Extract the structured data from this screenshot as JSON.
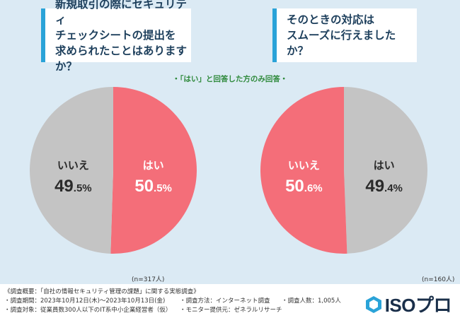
{
  "questions": {
    "left": "新規取引の際にセキュリティ\nチェックシートの提出を\n求められたことはありますか？",
    "right": "そのときの対応は\nスムーズに行えましたか？"
  },
  "note": "・「はい」と回答した方のみ回答・",
  "chart_data": [
    {
      "type": "pie",
      "title": "新規取引の際にセキュリティチェックシートの提出を求められたことはありますか？",
      "slices": [
        {
          "label": "はい",
          "value": 50.5,
          "int": "50",
          "dec": ".5%",
          "color": "#f46e79"
        },
        {
          "label": "いいえ",
          "value": 49.5,
          "int": "49",
          "dec": ".5%",
          "color": "#c4c4c4"
        }
      ],
      "n": "(n=317人)"
    },
    {
      "type": "pie",
      "title": "そのときの対応はスムーズに行えましたか？",
      "slices": [
        {
          "label": "はい",
          "value": 49.4,
          "int": "49",
          "dec": ".4%",
          "color": "#c4c4c4"
        },
        {
          "label": "いいえ",
          "value": 50.6,
          "int": "50",
          "dec": ".6%",
          "color": "#f46e79"
        }
      ],
      "n": "(n=160人)"
    }
  ],
  "footer": {
    "survey": "《調査概要：「自社の情報セキュリティ管理の課題」に関する実態調査》",
    "period": "・調査期間：2023年10月12日(木)〜2023年10月13日(金)",
    "target": "・調査対象：従業員数300人以下のIT系中小企業経営者（仮）",
    "method": "・調査方法：インターネット調査",
    "monitor": "・モニター提供元：ゼネラルリサーチ",
    "count": "・調査人数：1,005人",
    "logo": "ISOプロ"
  },
  "colors": {
    "yes": "#f46e79",
    "no": "#c4c4c4",
    "accent": "#2aa3d8",
    "background": "#dbeaf4"
  }
}
